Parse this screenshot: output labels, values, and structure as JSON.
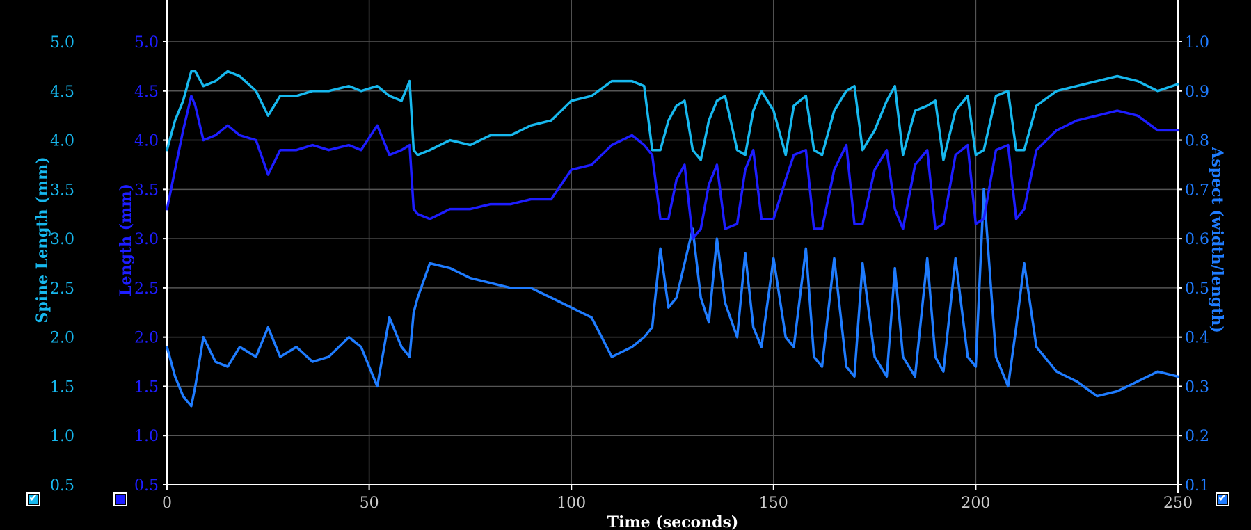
{
  "chart_data": {
    "type": "line",
    "xlabel": "Time (seconds)",
    "xlim": [
      0,
      250
    ],
    "x_ticks": [
      "0",
      "50",
      "100",
      "150",
      "200",
      "250"
    ],
    "grid": true,
    "axes": {
      "spine": {
        "label": "Spine Length (mm)",
        "ylim": [
          0.5,
          5.0
        ],
        "ticks": [
          "0.5",
          "1.0",
          "1.5",
          "2.0",
          "2.5",
          "3.0",
          "3.5",
          "4.0",
          "4.5",
          "5.0"
        ],
        "color": "#17b8ee"
      },
      "length": {
        "label": "Length (mm)",
        "ylim": [
          0.5,
          5.0
        ],
        "ticks": [
          "0.5",
          "1.0",
          "1.5",
          "2.0",
          "2.5",
          "3.0",
          "3.5",
          "4.0",
          "4.5",
          "5.0"
        ],
        "color": "#1d1dff"
      },
      "aspect": {
        "label": "Aspect (width/length)",
        "ylim": [
          0.1,
          1.0
        ],
        "ticks": [
          "0.1",
          "0.2",
          "0.3",
          "0.4",
          "0.5",
          "0.6",
          "0.7",
          "0.8",
          "0.9",
          "1.0"
        ],
        "color": "#1f7cff"
      }
    },
    "series": [
      {
        "axis": "spine",
        "color": "#17b8ee",
        "x": [
          0,
          2,
          4,
          6,
          7,
          9,
          12,
          15,
          18,
          22,
          25,
          28,
          32,
          36,
          40,
          45,
          48,
          52,
          55,
          58,
          60,
          61,
          62,
          65,
          70,
          75,
          80,
          85,
          90,
          95,
          100,
          105,
          110,
          115,
          118,
          120,
          122,
          124,
          126,
          128,
          130,
          132,
          134,
          136,
          138,
          141,
          143,
          145,
          147,
          150,
          153,
          155,
          158,
          160,
          162,
          165,
          168,
          170,
          172,
          175,
          178,
          180,
          182,
          185,
          188,
          190,
          192,
          195,
          198,
          200,
          202,
          205,
          208,
          210,
          212,
          215,
          220,
          225,
          230,
          235,
          240,
          245,
          250
        ],
        "y": [
          3.9,
          4.2,
          4.4,
          4.7,
          4.7,
          4.55,
          4.6,
          4.7,
          4.65,
          4.5,
          4.25,
          4.45,
          4.45,
          4.5,
          4.5,
          4.55,
          4.5,
          4.55,
          4.45,
          4.4,
          4.6,
          3.9,
          3.85,
          3.9,
          4.0,
          3.95,
          4.05,
          4.05,
          4.15,
          4.2,
          4.4,
          4.45,
          4.6,
          4.6,
          4.55,
          3.9,
          3.9,
          4.2,
          4.35,
          4.4,
          3.9,
          3.8,
          4.2,
          4.4,
          4.45,
          3.9,
          3.85,
          4.3,
          4.5,
          4.3,
          3.85,
          4.35,
          4.45,
          3.9,
          3.85,
          4.3,
          4.5,
          4.55,
          3.9,
          4.1,
          4.4,
          4.55,
          3.85,
          4.3,
          4.35,
          4.4,
          3.8,
          4.3,
          4.45,
          3.85,
          3.9,
          4.45,
          4.5,
          3.9,
          3.9,
          4.35,
          4.5,
          4.55,
          4.6,
          4.65,
          4.6,
          4.5,
          4.57
        ]
      },
      {
        "axis": "length",
        "color": "#1d1dff",
        "x": [
          0,
          2,
          4,
          6,
          7,
          9,
          12,
          15,
          18,
          22,
          25,
          28,
          32,
          36,
          40,
          45,
          48,
          52,
          55,
          58,
          60,
          61,
          62,
          65,
          70,
          75,
          80,
          85,
          90,
          95,
          100,
          105,
          110,
          115,
          118,
          120,
          122,
          124,
          126,
          128,
          130,
          132,
          134,
          136,
          138,
          141,
          143,
          145,
          147,
          150,
          153,
          155,
          158,
          160,
          162,
          165,
          168,
          170,
          172,
          175,
          178,
          180,
          182,
          185,
          188,
          190,
          192,
          195,
          198,
          200,
          202,
          205,
          208,
          210,
          212,
          215,
          220,
          225,
          230,
          235,
          240,
          245,
          250
        ],
        "y": [
          3.3,
          3.7,
          4.1,
          4.45,
          4.35,
          4.0,
          4.05,
          4.15,
          4.05,
          4.0,
          3.65,
          3.9,
          3.9,
          3.95,
          3.9,
          3.95,
          3.9,
          4.15,
          3.85,
          3.9,
          3.95,
          3.3,
          3.25,
          3.2,
          3.3,
          3.3,
          3.35,
          3.35,
          3.4,
          3.4,
          3.7,
          3.75,
          3.95,
          4.05,
          3.95,
          3.85,
          3.2,
          3.2,
          3.6,
          3.75,
          3.0,
          3.1,
          3.55,
          3.75,
          3.1,
          3.15,
          3.7,
          3.9,
          3.2,
          3.2,
          3.6,
          3.85,
          3.9,
          3.1,
          3.1,
          3.7,
          3.95,
          3.15,
          3.15,
          3.7,
          3.9,
          3.3,
          3.1,
          3.75,
          3.9,
          3.1,
          3.15,
          3.85,
          3.95,
          3.15,
          3.2,
          3.9,
          3.95,
          3.2,
          3.3,
          3.9,
          4.1,
          4.2,
          4.25,
          4.3,
          4.25,
          4.1,
          4.1
        ]
      },
      {
        "axis": "aspect",
        "color": "#1f7cff",
        "x": [
          0,
          2,
          4,
          6,
          7,
          9,
          12,
          15,
          18,
          22,
          25,
          28,
          32,
          36,
          40,
          45,
          48,
          52,
          55,
          58,
          60,
          61,
          62,
          65,
          70,
          75,
          80,
          85,
          90,
          95,
          100,
          105,
          110,
          115,
          118,
          120,
          122,
          124,
          126,
          128,
          130,
          132,
          134,
          136,
          138,
          141,
          143,
          145,
          147,
          150,
          153,
          155,
          158,
          160,
          162,
          165,
          168,
          170,
          172,
          175,
          178,
          180,
          182,
          185,
          188,
          190,
          192,
          195,
          198,
          200,
          202,
          205,
          208,
          210,
          212,
          215,
          220,
          225,
          230,
          235,
          240,
          245,
          250
        ],
        "y": [
          0.38,
          0.32,
          0.28,
          0.26,
          0.3,
          0.4,
          0.35,
          0.34,
          0.38,
          0.36,
          0.42,
          0.36,
          0.38,
          0.35,
          0.36,
          0.4,
          0.38,
          0.3,
          0.44,
          0.38,
          0.36,
          0.45,
          0.48,
          0.55,
          0.54,
          0.52,
          0.51,
          0.5,
          0.5,
          0.48,
          0.46,
          0.44,
          0.36,
          0.38,
          0.4,
          0.42,
          0.58,
          0.46,
          0.48,
          0.55,
          0.62,
          0.48,
          0.43,
          0.6,
          0.47,
          0.4,
          0.57,
          0.42,
          0.38,
          0.56,
          0.4,
          0.38,
          0.58,
          0.36,
          0.34,
          0.56,
          0.34,
          0.32,
          0.55,
          0.36,
          0.32,
          0.54,
          0.36,
          0.32,
          0.56,
          0.36,
          0.33,
          0.56,
          0.36,
          0.34,
          0.7,
          0.36,
          0.3,
          0.42,
          0.55,
          0.38,
          0.33,
          0.31,
          0.28,
          0.29,
          0.31,
          0.33,
          0.32
        ]
      }
    ]
  }
}
